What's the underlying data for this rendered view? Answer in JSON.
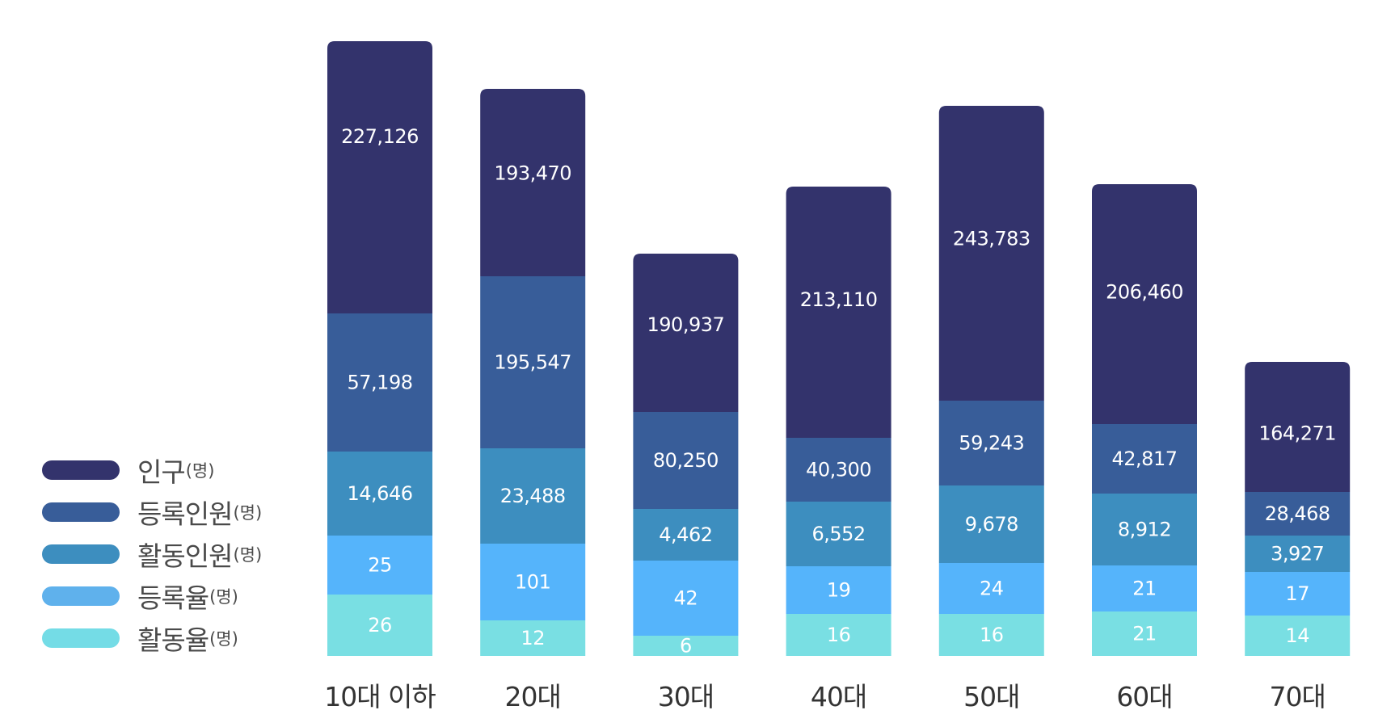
{
  "chart_data": {
    "type": "bar",
    "stacked": true,
    "categories": [
      "10대 이하",
      "20대",
      "30대",
      "40대",
      "50대",
      "60대",
      "70대"
    ],
    "series": [
      {
        "name": "인구",
        "unit": "(명)",
        "color": "#33336c",
        "values": [
          227126,
          193470,
          190937,
          213110,
          243783,
          206460,
          164271
        ]
      },
      {
        "name": "등록인원",
        "unit": "(명)",
        "color": "#385d99",
        "values": [
          57198,
          195547,
          80250,
          40300,
          59243,
          42817,
          28468
        ]
      },
      {
        "name": "활동인원",
        "unit": "(명)",
        "color": "#3d8ebf",
        "values": [
          14646,
          23488,
          4462,
          6552,
          9678,
          8912,
          3927
        ]
      },
      {
        "name": "등록율",
        "unit": "(명)",
        "color": "#55b4fb",
        "values": [
          25,
          101,
          42,
          19,
          24,
          21,
          17
        ]
      },
      {
        "name": "활동율",
        "unit": "(명)",
        "color": "#79dfe3",
        "values": [
          26,
          12,
          6,
          16,
          16,
          21,
          14
        ]
      }
    ],
    "legend_position": "left",
    "grid": false,
    "title": "",
    "xlabel": "",
    "ylabel": ""
  }
}
